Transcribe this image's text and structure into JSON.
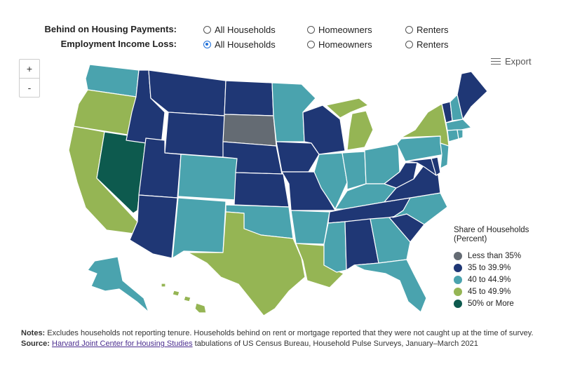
{
  "controls": {
    "behind": {
      "label": "Behind on Housing Payments:",
      "options": [
        "All Households",
        "Homeowners",
        "Renters"
      ],
      "selected": null
    },
    "income_loss": {
      "label": "Employment Income Loss:",
      "options": [
        "All Households",
        "Homeowners",
        "Renters"
      ],
      "selected": "All Households"
    }
  },
  "zoom": {
    "in": "+",
    "out": "-"
  },
  "export": {
    "label": "Export",
    "icon": "menu-icon"
  },
  "legend": {
    "title": "Share of Households (Percent)",
    "items": [
      {
        "label": "Less than 35%",
        "color": "#646b73"
      },
      {
        "label": "35 to 39.9%",
        "color": "#1f3775"
      },
      {
        "label": "40 to 44.9%",
        "color": "#4aa3ae"
      },
      {
        "label": "45 to 49.9%",
        "color": "#95b554"
      },
      {
        "label": "50% or More",
        "color": "#0d5a4e"
      }
    ]
  },
  "map_colors": {
    "WA": "#4aa3ae",
    "OR": "#95b554",
    "CA": "#95b554",
    "NV": "#0d5a4e",
    "ID": "#1f3775",
    "MT": "#1f3775",
    "WY": "#1f3775",
    "UT": "#1f3775",
    "AZ": "#1f3775",
    "CO": "#4aa3ae",
    "NM": "#4aa3ae",
    "ND": "#1f3775",
    "SD": "#646b73",
    "NE": "#1f3775",
    "KS": "#1f3775",
    "OK": "#4aa3ae",
    "TX": "#95b554",
    "MN": "#4aa3ae",
    "IA": "#1f3775",
    "MO": "#1f3775",
    "AR": "#4aa3ae",
    "LA": "#95b554",
    "WI": "#1f3775",
    "IL": "#4aa3ae",
    "MI": "#95b554",
    "IN": "#4aa3ae",
    "OH": "#4aa3ae",
    "KY": "#4aa3ae",
    "TN": "#1f3775",
    "MS": "#4aa3ae",
    "AL": "#1f3775",
    "GA": "#4aa3ae",
    "FL": "#4aa3ae",
    "SC": "#1f3775",
    "NC": "#4aa3ae",
    "VA": "#1f3775",
    "WV": "#1f3775",
    "PA": "#4aa3ae",
    "NY": "#95b554",
    "MD": "#1f3775",
    "DE": "#1f3775",
    "NJ": "#4aa3ae",
    "VT": "#1f3775",
    "NH": "#4aa3ae",
    "ME": "#1f3775",
    "MA": "#4aa3ae",
    "CT": "#4aa3ae",
    "RI": "#4aa3ae",
    "AK": "#4aa3ae",
    "HI": "#95b554"
  },
  "notes": {
    "notes_label": "Notes:",
    "notes_text": " Excludes households not reporting tenure. Households behind on rent or mortgage reported that they were not caught up at the time of survey.",
    "source_label": "Source:",
    "source_link": "Harvard Joint Center for Housing Studies",
    "source_text": " tabulations of US Census Bureau, Household Pulse Surveys, January–March 2021"
  }
}
